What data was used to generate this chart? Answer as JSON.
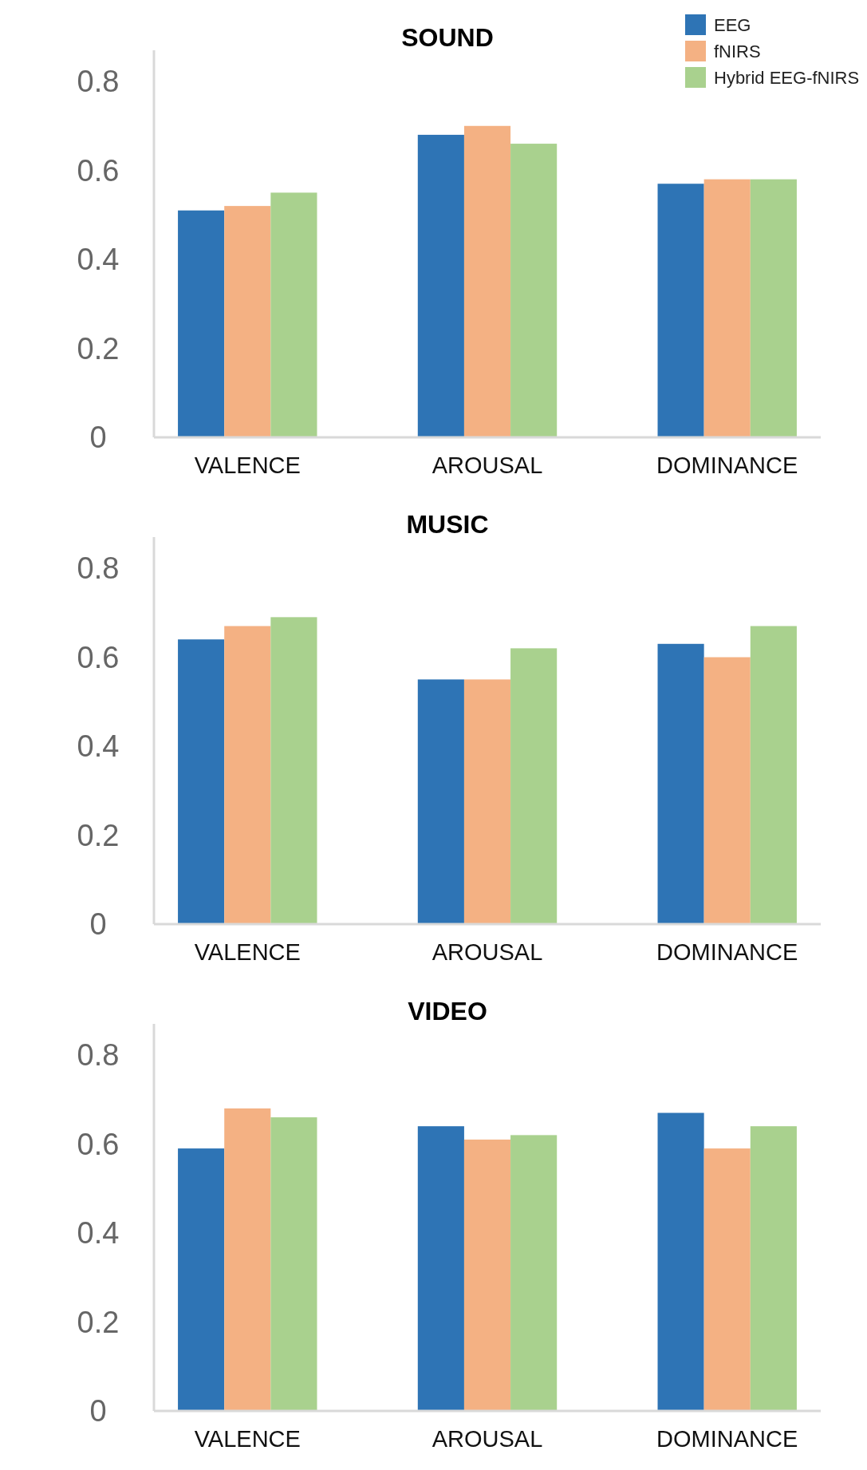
{
  "chart_data": [
    {
      "type": "bar",
      "title": "SOUND",
      "categories": [
        "VALENCE",
        "AROUSAL",
        "DOMINANCE"
      ],
      "ylim": [
        0,
        0.87
      ],
      "yticks": [
        0,
        0.2,
        0.4,
        0.6,
        0.8
      ],
      "grid": false,
      "legend": "top right",
      "series": [
        {
          "name": "EEG",
          "color": "#2e74b5",
          "values": [
            0.51,
            0.68,
            0.57
          ]
        },
        {
          "name": "fNIRS",
          "color": "#f4b183",
          "values": [
            0.52,
            0.7,
            0.58
          ]
        },
        {
          "name": "Hybrid EEG-fNIRS",
          "color": "#a9d18e",
          "values": [
            0.55,
            0.66,
            0.58
          ]
        }
      ]
    },
    {
      "type": "bar",
      "title": "MUSIC",
      "categories": [
        "VALENCE",
        "AROUSAL",
        "DOMINANCE"
      ],
      "ylim": [
        0,
        0.87
      ],
      "yticks": [
        0,
        0.2,
        0.4,
        0.6,
        0.8
      ],
      "grid": false,
      "legend": false,
      "series": [
        {
          "color": "#2e74b5",
          "values": [
            0.64,
            0.55,
            0.63
          ]
        },
        {
          "color": "#f4b183",
          "values": [
            0.67,
            0.55,
            0.6
          ]
        },
        {
          "color": "#a9d18e",
          "values": [
            0.69,
            0.62,
            0.67
          ]
        }
      ]
    },
    {
      "type": "bar",
      "title": "VIDEO",
      "categories": [
        "VALENCE",
        "AROUSAL",
        "DOMINANCE"
      ],
      "ylim": [
        0,
        0.87
      ],
      "yticks": [
        0,
        0.2,
        0.4,
        0.6,
        0.8
      ],
      "grid": false,
      "legend": false,
      "series": [
        {
          "color": "#2e74b5",
          "values": [
            0.59,
            0.64,
            0.67
          ]
        },
        {
          "color": "#f4b183",
          "values": [
            0.68,
            0.61,
            0.59
          ]
        },
        {
          "color": "#a9d18e",
          "values": [
            0.66,
            0.62,
            0.64
          ]
        }
      ]
    }
  ]
}
